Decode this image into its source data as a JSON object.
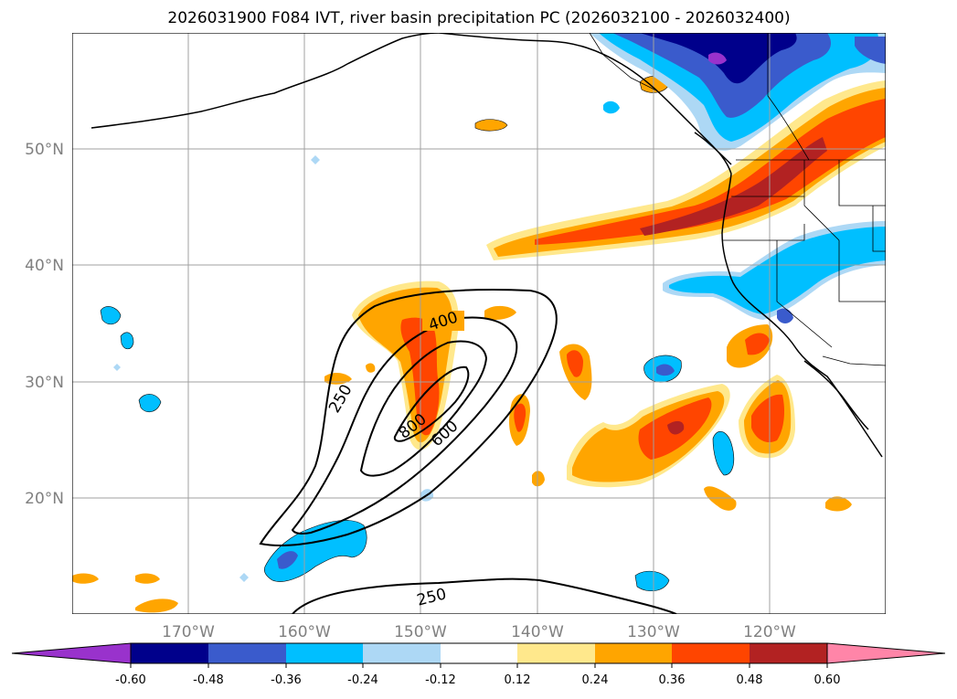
{
  "title": "2026031900 F084 IVT, river basin precipitation PC (2026032100 - 2026032400)",
  "map": {
    "lon_range": [
      -180,
      -110
    ],
    "lat_range": [
      10,
      60
    ],
    "lon_ticks": [
      -170,
      -160,
      -150,
      -140,
      -130,
      -120
    ],
    "lat_ticks": [
      20,
      30,
      40,
      50
    ],
    "lon_tick_labels": [
      "170°W",
      "160°W",
      "150°W",
      "140°W",
      "130°W",
      "120°W"
    ],
    "lat_tick_labels": [
      "20°N",
      "30°N",
      "40°N",
      "50°N"
    ],
    "gridlines": true
  },
  "ivt_contours": {
    "levels": [
      250,
      400,
      600,
      800
    ],
    "labels": [
      "250",
      "400",
      "600",
      "800",
      "250"
    ]
  },
  "colorbar": {
    "extend": "both",
    "ticks": [
      "-0.60",
      "-0.48",
      "-0.36",
      "-0.24",
      "-0.12",
      "0.12",
      "0.24",
      "0.36",
      "0.48",
      "0.60"
    ],
    "colors": [
      "#9932cc",
      "#00008b",
      "#3a5bcc",
      "#00bfff",
      "#add8f5",
      "#ffffff",
      "#ffe88c",
      "#ffa500",
      "#ff4500",
      "#b22222",
      "#ff85a8"
    ]
  }
}
